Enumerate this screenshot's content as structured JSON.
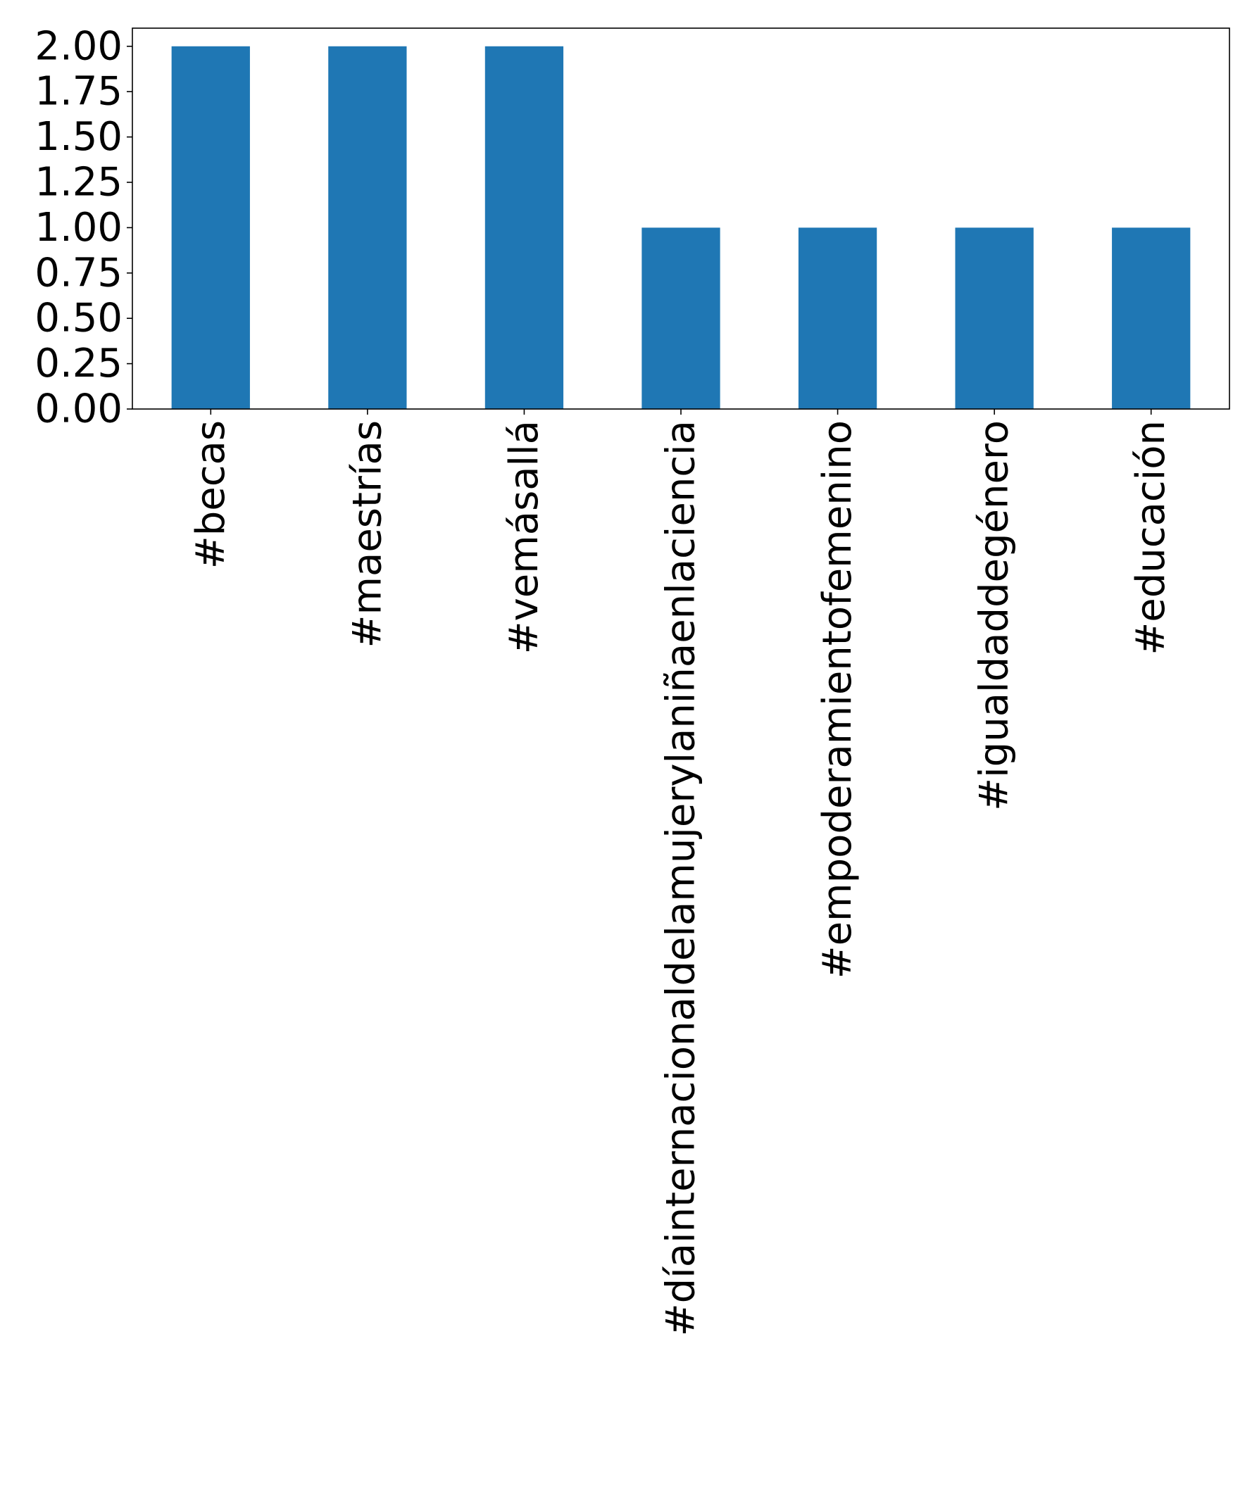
{
  "chart_data": {
    "type": "bar",
    "categories": [
      "#becas",
      "#maestrías",
      "#vemásallá",
      "#díainternacionaldelamujerylaniñaenlaciencia",
      "#empoderamientofemenino",
      "#igualdaddegénero",
      "#educación"
    ],
    "values": [
      2,
      2,
      2,
      1,
      1,
      1,
      1
    ],
    "ylim": [
      0,
      2.1
    ],
    "yticks": [
      "0.00",
      "0.25",
      "0.50",
      "0.75",
      "1.00",
      "1.25",
      "1.50",
      "1.75",
      "2.00"
    ],
    "bar_color": "#1f77b4",
    "grid": false,
    "legend": "none"
  }
}
